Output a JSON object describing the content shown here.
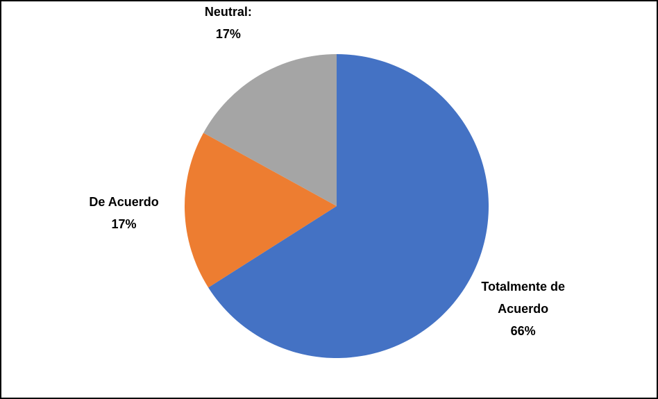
{
  "chart_data": {
    "type": "pie",
    "categories": [
      "Totalmente de Acuerdo",
      "De Acuerdo",
      "Neutral:"
    ],
    "values": [
      66,
      17,
      17
    ],
    "value_labels": [
      "66%",
      "17%",
      "17%"
    ],
    "colors": [
      "#4472c4",
      "#ed7d31",
      "#a5a5a5"
    ]
  }
}
